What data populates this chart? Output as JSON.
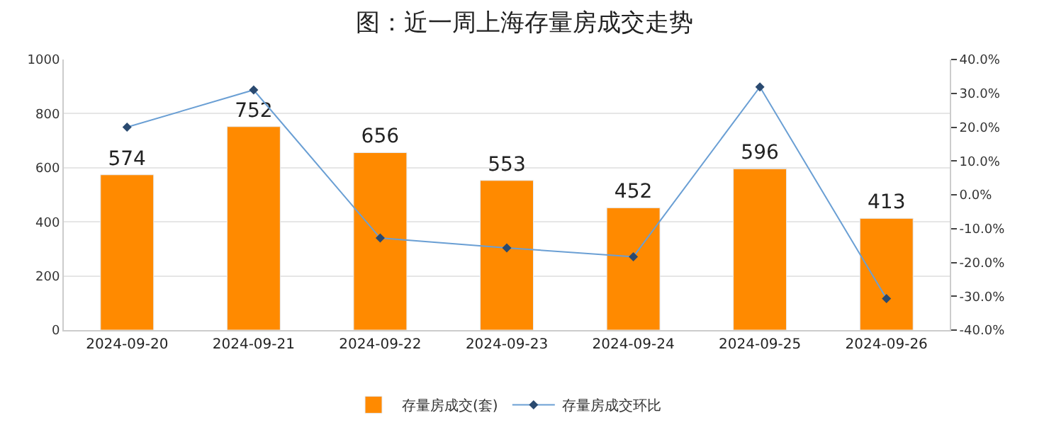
{
  "chart_data": {
    "type": "bar",
    "title": "图：近一周上海存量房成交走势",
    "categories": [
      "2024-09-20",
      "2024-09-21",
      "2024-09-22",
      "2024-09-23",
      "2024-09-24",
      "2024-09-25",
      "2024-09-26"
    ],
    "series": [
      {
        "name": "存量房成交(套)",
        "color": "#ff8a00",
        "values": [
          574,
          752,
          656,
          553,
          452,
          596,
          413
        ],
        "data_labels": true
      },
      {
        "name": "存量房成交环比",
        "type": "line",
        "axis": "y2",
        "color": "#6a9fd4",
        "marker": "diamond",
        "values": [
          20.0,
          31.0,
          -12.8,
          -15.7,
          -18.3,
          31.9,
          -30.7
        ]
      }
    ],
    "ylim": [
      0,
      1000
    ],
    "yticks": [
      0,
      200,
      400,
      600,
      800,
      1000
    ],
    "y2lim": [
      -40,
      40
    ],
    "y2ticks": [
      {
        "value": -40,
        "label": "-40.0%"
      },
      {
        "value": -30,
        "label": "-30.0%"
      },
      {
        "value": -20,
        "label": "-20.0%"
      },
      {
        "value": -10,
        "label": "-10.0%"
      },
      {
        "value": 0,
        "label": "0.0%"
      },
      {
        "value": 10,
        "label": "10.0%"
      },
      {
        "value": 20,
        "label": "20.0%"
      },
      {
        "value": 30,
        "label": "30.0%"
      },
      {
        "value": 40,
        "label": "40.0%"
      }
    ],
    "grid": "y",
    "legend": "bottom"
  }
}
